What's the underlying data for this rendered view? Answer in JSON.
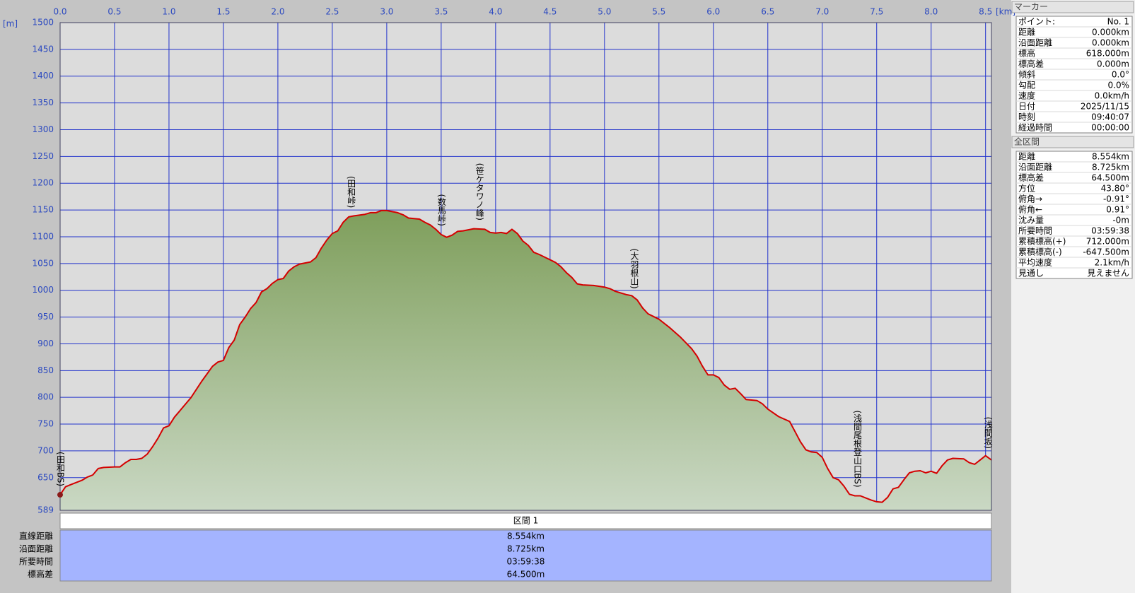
{
  "chart_data": {
    "type": "area",
    "x_unit": "[km]",
    "y_unit": "[m]",
    "xlim": [
      0,
      8.554
    ],
    "ylim": [
      589,
      1500
    ],
    "xticks": [
      {
        "value": 0,
        "label": "0.0"
      },
      0.5,
      {
        "value": 1,
        "label": "1.0"
      },
      1.5,
      {
        "value": 2,
        "label": "2.0"
      },
      2.5,
      {
        "value": 3,
        "label": "3.0"
      },
      3.5,
      {
        "value": 4,
        "label": "4.0"
      },
      4.5,
      {
        "value": 5,
        "label": "5.0"
      },
      5.5,
      {
        "value": 6,
        "label": "6.0"
      },
      6.5,
      {
        "value": 7,
        "label": "7.0"
      },
      7.5,
      {
        "value": 8,
        "label": "8.0"
      },
      8.5
    ],
    "yticks": [
      589,
      650,
      700,
      750,
      800,
      850,
      900,
      950,
      1000,
      1050,
      1100,
      1150,
      1200,
      1250,
      1300,
      1350,
      1400,
      1450,
      1500
    ],
    "grid": true,
    "color": "#d40000",
    "x": [
      0,
      0.05,
      0.1,
      0.2,
      0.25,
      0.3,
      0.35,
      0.4,
      0.5,
      0.55,
      0.6,
      0.65,
      0.7,
      0.75,
      0.8,
      0.85,
      0.9,
      0.95,
      1.0,
      1.05,
      1.1,
      1.2,
      1.3,
      1.4,
      1.45,
      1.5,
      1.55,
      1.6,
      1.65,
      1.7,
      1.75,
      1.8,
      1.85,
      1.9,
      1.95,
      2.0,
      2.05,
      2.1,
      2.15,
      2.2,
      2.3,
      2.35,
      2.4,
      2.45,
      2.5,
      2.55,
      2.6,
      2.65,
      2.7,
      2.8,
      2.85,
      2.9,
      2.95,
      3.0,
      3.1,
      3.15,
      3.2,
      3.3,
      3.35,
      3.4,
      3.45,
      3.5,
      3.55,
      3.6,
      3.65,
      3.7,
      3.8,
      3.9,
      3.95,
      4.0,
      4.05,
      4.1,
      4.15,
      4.2,
      4.25,
      4.3,
      4.35,
      4.4,
      4.5,
      4.55,
      4.6,
      4.65,
      4.7,
      4.75,
      4.8,
      4.9,
      5.0,
      5.05,
      5.1,
      5.2,
      5.25,
      5.3,
      5.35,
      5.4,
      5.45,
      5.5,
      5.6,
      5.7,
      5.8,
      5.85,
      5.9,
      5.95,
      6.0,
      6.05,
      6.1,
      6.15,
      6.2,
      6.25,
      6.3,
      6.4,
      6.45,
      6.5,
      6.6,
      6.7,
      6.75,
      6.8,
      6.85,
      6.9,
      6.95,
      7.0,
      7.05,
      7.1,
      7.15,
      7.2,
      7.25,
      7.3,
      7.35,
      7.4,
      7.45,
      7.5,
      7.55,
      7.6,
      7.65,
      7.7,
      7.75,
      7.8,
      7.85,
      7.9,
      7.95,
      8.0,
      8.05,
      8.1,
      8.15,
      8.2,
      8.3,
      8.35,
      8.4,
      8.45,
      8.5,
      8.554
    ],
    "values": [
      618,
      633,
      637,
      645,
      651,
      655,
      667,
      669,
      670,
      670,
      678,
      684,
      684,
      686,
      694,
      708,
      724,
      743,
      747,
      763,
      775,
      799,
      830,
      858,
      866,
      869,
      893,
      907,
      936,
      950,
      966,
      977,
      997,
      1003,
      1013,
      1020,
      1022,
      1036,
      1044,
      1049,
      1053,
      1061,
      1079,
      1094,
      1106,
      1111,
      1127,
      1137,
      1139,
      1142,
      1145,
      1145,
      1149,
      1149,
      1145,
      1141,
      1135,
      1133,
      1127,
      1122,
      1114,
      1104,
      1099,
      1103,
      1110,
      1111,
      1115,
      1114,
      1108,
      1107,
      1108,
      1106,
      1114,
      1106,
      1092,
      1084,
      1071,
      1067,
      1057,
      1052,
      1044,
      1033,
      1024,
      1012,
      1010,
      1009,
      1006,
      1003,
      998,
      992,
      990,
      982,
      967,
      956,
      951,
      946,
      930,
      912,
      891,
      877,
      858,
      842,
      842,
      837,
      823,
      815,
      817,
      807,
      796,
      794,
      788,
      778,
      764,
      755,
      736,
      717,
      702,
      698,
      697,
      688,
      667,
      650,
      646,
      634,
      619,
      616,
      616,
      612,
      608,
      605,
      604,
      613,
      629,
      632,
      646,
      659,
      662,
      663,
      659,
      662,
      658,
      672,
      683,
      686,
      685,
      678,
      675,
      683,
      691,
      683
    ],
    "annotations": [
      {
        "label": "(田和BS)",
        "x": 0
      },
      {
        "label": "(田和峠)",
        "x": 2.67
      },
      {
        "label": "(数馬峠)",
        "x": 3.5
      },
      {
        "label": "(笹ケタワノ峰)",
        "x": 3.85
      },
      {
        "label": "(大羽根山)",
        "x": 5.27
      },
      {
        "label": "(浅間尾根登山口BS)",
        "x": 7.32
      },
      {
        "label": "(浅間坂)",
        "x": 8.52
      }
    ]
  },
  "section_table": {
    "header": "区間 1",
    "rows": [
      [
        "直線距離",
        "8.554km"
      ],
      [
        "沿面距離",
        "8.725km"
      ],
      [
        "所要時間",
        "03:59:38"
      ],
      [
        "標高差",
        "64.500m"
      ]
    ]
  },
  "marker_panel": {
    "title": "マーカー",
    "rows": [
      [
        "ポイント:",
        "No. 1"
      ],
      [
        "距離",
        "0.000km"
      ],
      [
        "沿面距離",
        "0.000km"
      ],
      [
        "標高",
        "618.000m"
      ],
      [
        "標高差",
        "0.000m"
      ],
      [
        "傾斜",
        "0.0°"
      ],
      [
        "勾配",
        "0.0%"
      ],
      [
        "速度",
        "0.0km/h"
      ],
      [
        "日付",
        "2025/11/15"
      ],
      [
        "時刻",
        "09:40:07"
      ],
      [
        "経過時間",
        "00:00:00"
      ]
    ]
  },
  "total_panel": {
    "title": "全区間",
    "rows": [
      [
        "距離",
        "8.554km"
      ],
      [
        "沿面距離",
        "8.725km"
      ],
      [
        "標高差",
        "64.500m"
      ],
      [
        "方位",
        "43.80°"
      ],
      [
        "俯角→",
        "-0.91°"
      ],
      [
        "俯角←",
        "0.91°"
      ],
      [
        "沈み量",
        "-0m"
      ],
      [
        "所要時間",
        "03:59:38"
      ],
      [
        "累積標高(+)",
        "712.000m"
      ],
      [
        "累積標高(-)",
        "-647.500m"
      ],
      [
        "平均速度",
        "2.1km/h"
      ],
      [
        "見通し",
        "見えません"
      ]
    ]
  }
}
